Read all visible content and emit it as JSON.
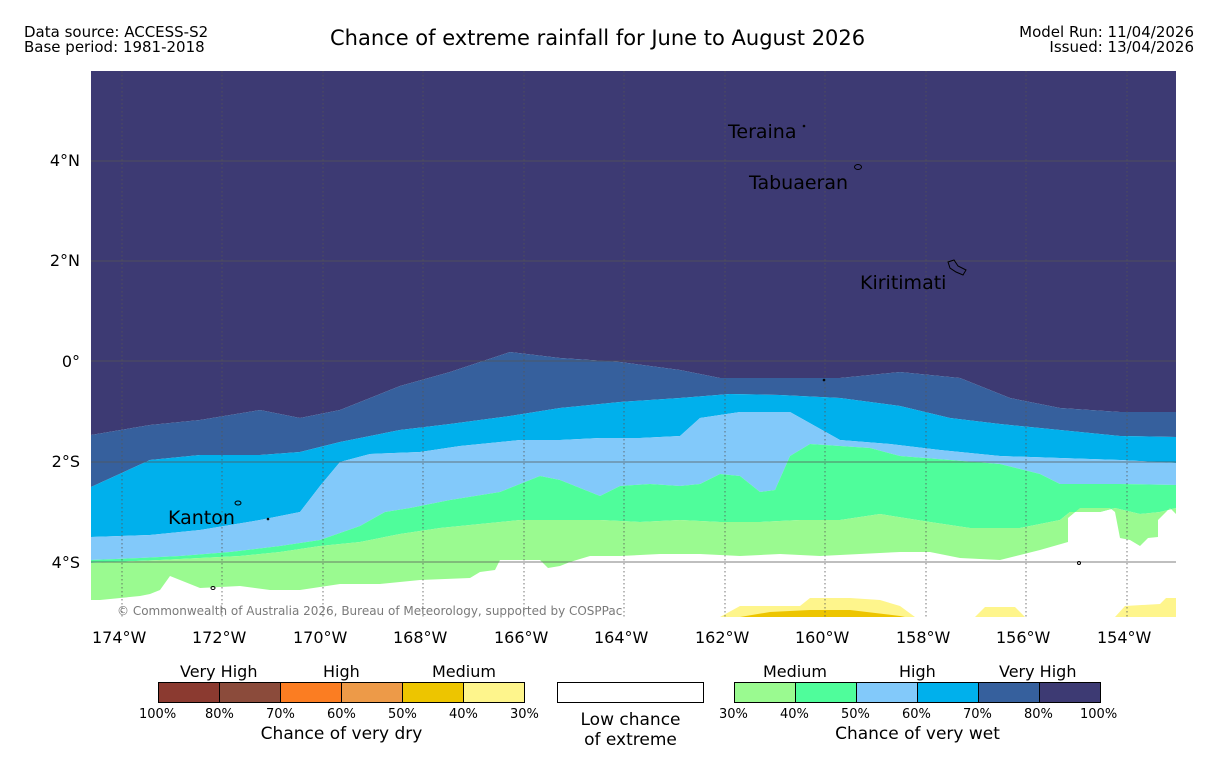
{
  "header": {
    "data_source": "Data source: ACCESS-S2",
    "base_period": "Base period: 1981-2018",
    "title": "Chance of extreme rainfall for June to August 2026",
    "model_run": "Model Run: 11/04/2026",
    "issued": "Issued: 13/04/2026"
  },
  "map": {
    "lat_labels": [
      "4°N",
      "2°N",
      "0°",
      "2°S",
      "4°S"
    ],
    "lon_labels": [
      "174°W",
      "172°W",
      "170°W",
      "168°W",
      "166°W",
      "164°W",
      "162°W",
      "160°W",
      "158°W",
      "156°W",
      "154°W"
    ],
    "places": {
      "teraina": "Teraina",
      "tabuaeran": "Tabuaeran",
      "kiritimati": "Kiritimati",
      "kanton": "Kanton"
    },
    "copyright": "© Commonwealth of Australia 2026, Bureau of Meteorology, supported by COSPPac"
  },
  "legend": {
    "dry": {
      "headings": [
        "Very High",
        "High",
        "Medium"
      ],
      "colors": [
        "#8b3a30",
        "#8b4b3b",
        "#fb7d22",
        "#ed9a48",
        "#edc500",
        "#fef58c"
      ],
      "ticks": [
        "100%",
        "80%",
        "70%",
        "60%",
        "50%",
        "40%",
        "30%"
      ],
      "caption": "Chance of very dry"
    },
    "low": {
      "color": "#ffffff",
      "caption_line1": "Low chance",
      "caption_line2": "of extreme"
    },
    "wet": {
      "headings": [
        "Medium",
        "High",
        "Very High"
      ],
      "colors": [
        "#9afa90",
        "#4ffd9b",
        "#82c9fa",
        "#00b0ec",
        "#36609d",
        "#3d3a73"
      ],
      "ticks": [
        "30%",
        "40%",
        "50%",
        "60%",
        "70%",
        "80%",
        "100%"
      ],
      "caption": "Chance of very wet"
    }
  }
}
